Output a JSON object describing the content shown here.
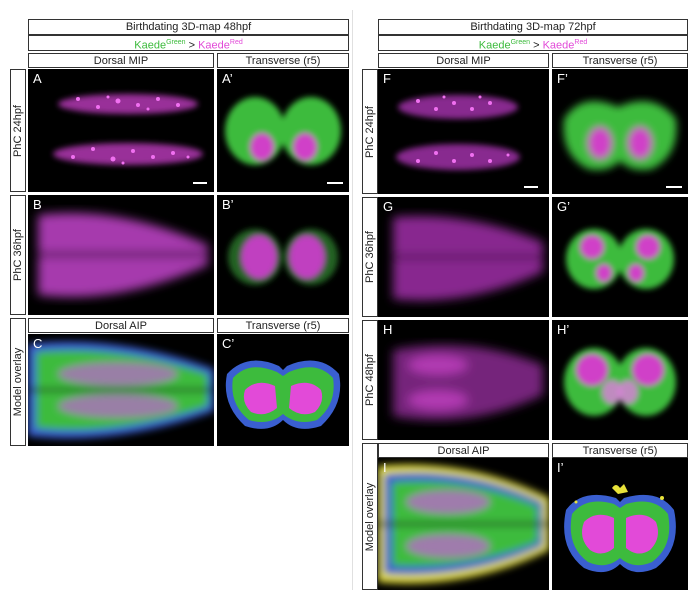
{
  "left": {
    "title": "Birthdating 3D-map 48hpf",
    "subtitle": {
      "green_base": "Kaede",
      "green_sup": "Green",
      "sep": " > ",
      "red_base": "Kaede",
      "red_sup": "Red"
    },
    "col_dorsal": "Dorsal MIP",
    "col_transverse": "Transverse (r5)",
    "rows": [
      {
        "label": "PhC 24hpf",
        "dorsal_letter": "A",
        "transverse_letter": "A’"
      },
      {
        "label": "PhC 36hpf",
        "dorsal_letter": "B",
        "transverse_letter": "B’"
      }
    ],
    "model_label": "Model overlay",
    "model_dorsal_header": "Dorsal AIP",
    "model_transverse_header": "Transverse (r5)",
    "model_dorsal_letter": "C",
    "model_transverse_letter": "C’"
  },
  "right": {
    "title": "Birthdating 3D-map 72hpf",
    "subtitle": {
      "green_base": "Kaede",
      "green_sup": "Green",
      "sep": " > ",
      "red_base": "Kaede",
      "red_sup": "Red"
    },
    "col_dorsal": "Dorsal MIP",
    "col_transverse": "Transverse (r5)",
    "rows": [
      {
        "label": "PhC 24hpf",
        "dorsal_letter": "F",
        "transverse_letter": "F’"
      },
      {
        "label": "PhC 36hpf",
        "dorsal_letter": "G",
        "transverse_letter": "G’"
      },
      {
        "label": "PhC 48hpf",
        "dorsal_letter": "H",
        "transverse_letter": "H’"
      }
    ],
    "model_label": "Model overlay",
    "model_dorsal_header": "Dorsal AIP",
    "model_transverse_header": "Transverse (r5)",
    "model_dorsal_letter": "I",
    "model_transverse_letter": "I’"
  },
  "colors": {
    "green": "#3dbb3d",
    "magenta": "#e24ad8",
    "blue": "#3a5fd0",
    "yellow": "#e8e23a",
    "background": "#000000"
  }
}
